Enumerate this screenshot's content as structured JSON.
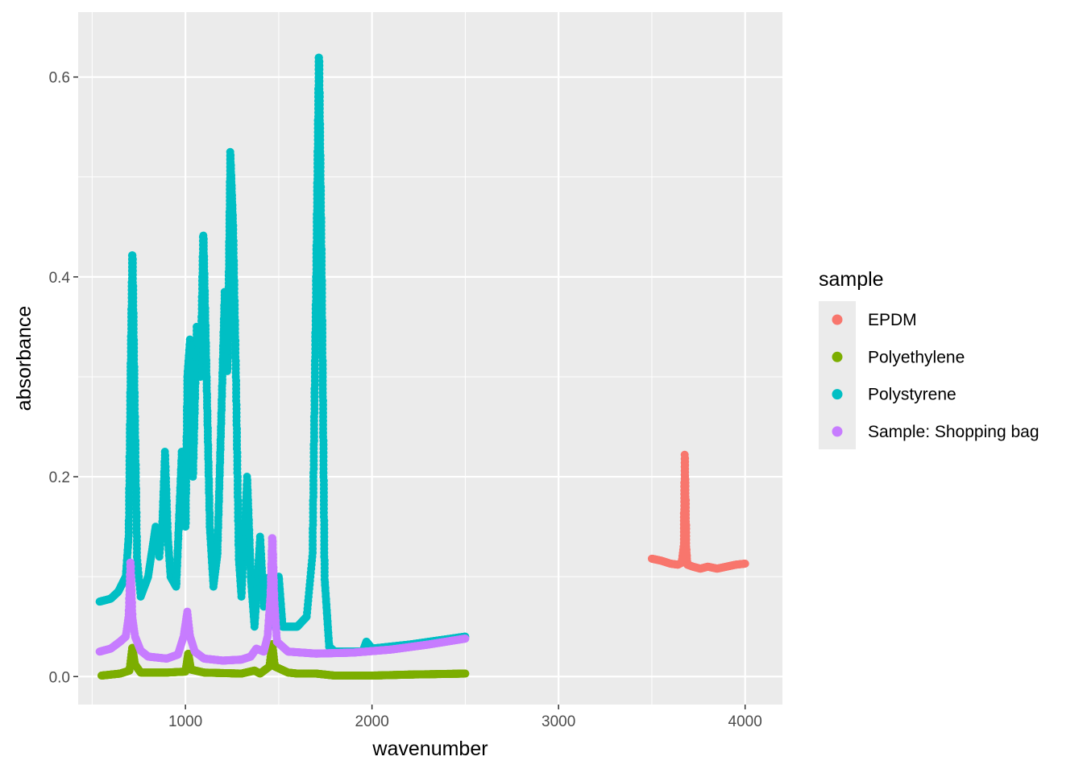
{
  "chart_data": {
    "type": "scatter",
    "xlabel": "wavenumber",
    "ylabel": "absorbance",
    "xlim": [
      425,
      4200
    ],
    "ylim": [
      -0.028,
      0.665
    ],
    "x_ticks": [
      1000,
      2000,
      3000,
      4000
    ],
    "x_tick_labels": [
      "1000",
      "2000",
      "3000",
      "4000"
    ],
    "y_ticks": [
      0.0,
      0.2,
      0.4,
      0.6
    ],
    "y_tick_labels": [
      "0.0",
      "0.2",
      "0.4",
      "0.6"
    ],
    "grid": true,
    "legend": {
      "title": "sample",
      "position": "right",
      "entries": [
        "EPDM",
        "Polyethylene",
        "Polystyrene",
        "Sample: Shopping bag"
      ]
    },
    "series": [
      {
        "name": "EPDM",
        "color": "#F8766D",
        "x_range": [
          3500,
          4000
        ],
        "anchors": [
          [
            3500,
            0.118
          ],
          [
            3550,
            0.116
          ],
          [
            3600,
            0.113
          ],
          [
            3640,
            0.112
          ],
          [
            3660,
            0.114
          ],
          [
            3670,
            0.13
          ],
          [
            3673,
            0.18
          ],
          [
            3676,
            0.222
          ],
          [
            3680,
            0.18
          ],
          [
            3684,
            0.13
          ],
          [
            3690,
            0.112
          ],
          [
            3720,
            0.11
          ],
          [
            3760,
            0.108
          ],
          [
            3800,
            0.11
          ],
          [
            3850,
            0.108
          ],
          [
            3900,
            0.11
          ],
          [
            3950,
            0.112
          ],
          [
            4000,
            0.113
          ]
        ]
      },
      {
        "name": "Polyethylene",
        "color": "#7CAE00",
        "x_range": [
          550,
          2500
        ],
        "anchors": [
          [
            550,
            0.001
          ],
          [
            650,
            0.003
          ],
          [
            700,
            0.006
          ],
          [
            715,
            0.03
          ],
          [
            730,
            0.012
          ],
          [
            760,
            0.004
          ],
          [
            900,
            0.004
          ],
          [
            1000,
            0.005
          ],
          [
            1015,
            0.024
          ],
          [
            1030,
            0.007
          ],
          [
            1100,
            0.004
          ],
          [
            1300,
            0.003
          ],
          [
            1370,
            0.006
          ],
          [
            1400,
            0.003
          ],
          [
            1450,
            0.01
          ],
          [
            1465,
            0.034
          ],
          [
            1480,
            0.01
          ],
          [
            1550,
            0.004
          ],
          [
            1600,
            0.003
          ],
          [
            1700,
            0.003
          ],
          [
            1800,
            0.001
          ],
          [
            2000,
            0.001
          ],
          [
            2200,
            0.002
          ],
          [
            2500,
            0.003
          ]
        ]
      },
      {
        "name": "Polystyrene",
        "color": "#00BFC4",
        "x_range": [
          540,
          2500
        ],
        "anchors": [
          [
            540,
            0.075
          ],
          [
            600,
            0.078
          ],
          [
            640,
            0.085
          ],
          [
            680,
            0.1
          ],
          [
            695,
            0.14
          ],
          [
            705,
            0.3
          ],
          [
            715,
            0.435
          ],
          [
            725,
            0.3
          ],
          [
            740,
            0.12
          ],
          [
            760,
            0.08
          ],
          [
            800,
            0.1
          ],
          [
            840,
            0.15
          ],
          [
            860,
            0.12
          ],
          [
            875,
            0.15
          ],
          [
            890,
            0.225
          ],
          [
            905,
            0.14
          ],
          [
            920,
            0.1
          ],
          [
            950,
            0.09
          ],
          [
            980,
            0.225
          ],
          [
            1000,
            0.15
          ],
          [
            1010,
            0.3
          ],
          [
            1025,
            0.34
          ],
          [
            1040,
            0.2
          ],
          [
            1060,
            0.35
          ],
          [
            1080,
            0.3
          ],
          [
            1095,
            0.45
          ],
          [
            1110,
            0.32
          ],
          [
            1130,
            0.15
          ],
          [
            1150,
            0.09
          ],
          [
            1170,
            0.12
          ],
          [
            1190,
            0.25
          ],
          [
            1210,
            0.385
          ],
          [
            1225,
            0.3
          ],
          [
            1240,
            0.525
          ],
          [
            1255,
            0.45
          ],
          [
            1270,
            0.3
          ],
          [
            1285,
            0.12
          ],
          [
            1300,
            0.08
          ],
          [
            1330,
            0.2
          ],
          [
            1350,
            0.1
          ],
          [
            1370,
            0.05
          ],
          [
            1400,
            0.14
          ],
          [
            1420,
            0.07
          ],
          [
            1445,
            0.1
          ],
          [
            1460,
            0.07
          ],
          [
            1480,
            0.05
          ],
          [
            1500,
            0.1
          ],
          [
            1520,
            0.05
          ],
          [
            1550,
            0.05
          ],
          [
            1600,
            0.05
          ],
          [
            1650,
            0.06
          ],
          [
            1680,
            0.12
          ],
          [
            1700,
            0.4
          ],
          [
            1715,
            0.635
          ],
          [
            1730,
            0.4
          ],
          [
            1745,
            0.1
          ],
          [
            1770,
            0.03
          ],
          [
            1800,
            0.025
          ],
          [
            1950,
            0.025
          ],
          [
            1970,
            0.035
          ],
          [
            2000,
            0.028
          ],
          [
            2200,
            0.032
          ],
          [
            2500,
            0.04
          ]
        ]
      },
      {
        "name": "Sample: Shopping bag",
        "color": "#C77CFF",
        "x_range": [
          540,
          2500
        ],
        "anchors": [
          [
            540,
            0.025
          ],
          [
            600,
            0.028
          ],
          [
            650,
            0.035
          ],
          [
            680,
            0.04
          ],
          [
            695,
            0.06
          ],
          [
            705,
            0.12
          ],
          [
            715,
            0.06
          ],
          [
            730,
            0.04
          ],
          [
            760,
            0.026
          ],
          [
            800,
            0.02
          ],
          [
            900,
            0.018
          ],
          [
            960,
            0.022
          ],
          [
            990,
            0.04
          ],
          [
            1010,
            0.065
          ],
          [
            1025,
            0.04
          ],
          [
            1050,
            0.025
          ],
          [
            1100,
            0.018
          ],
          [
            1200,
            0.016
          ],
          [
            1300,
            0.017
          ],
          [
            1350,
            0.02
          ],
          [
            1380,
            0.028
          ],
          [
            1420,
            0.025
          ],
          [
            1440,
            0.04
          ],
          [
            1455,
            0.08
          ],
          [
            1465,
            0.145
          ],
          [
            1475,
            0.08
          ],
          [
            1490,
            0.035
          ],
          [
            1550,
            0.025
          ],
          [
            1700,
            0.023
          ],
          [
            1900,
            0.024
          ],
          [
            2100,
            0.027
          ],
          [
            2300,
            0.032
          ],
          [
            2500,
            0.038
          ]
        ]
      }
    ]
  }
}
